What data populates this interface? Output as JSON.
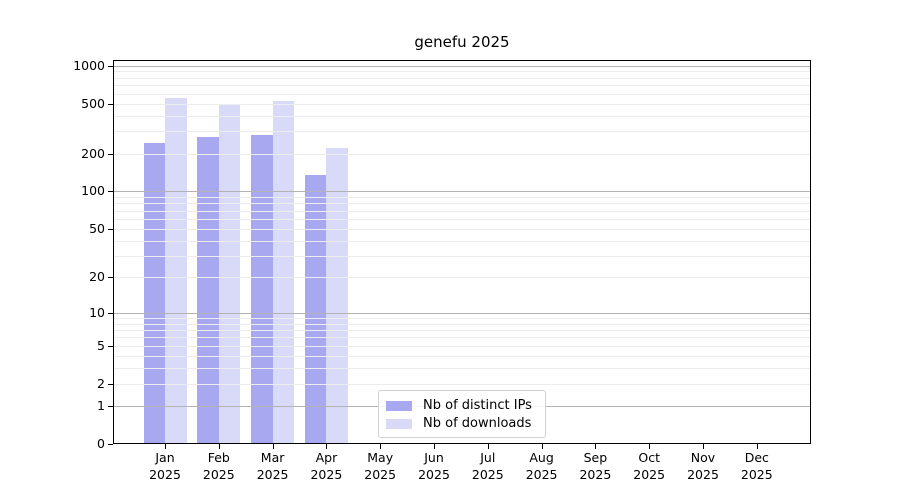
{
  "chart_data": {
    "type": "bar",
    "title": "genefu 2025",
    "categories": [
      "Jan",
      "Feb",
      "Mar",
      "Apr",
      "May",
      "Jun",
      "Jul",
      "Aug",
      "Sep",
      "Oct",
      "Nov",
      "Dec"
    ],
    "year_suffix": "2025",
    "series": [
      {
        "name": "Nb of distinct IPs",
        "color": "#a8a8f0",
        "values": [
          245,
          271,
          282,
          134,
          0,
          0,
          0,
          0,
          0,
          0,
          0,
          0
        ]
      },
      {
        "name": "Nb of downloads",
        "color": "#d9d9f8",
        "values": [
          550,
          495,
          527,
          221,
          0,
          0,
          0,
          0,
          0,
          0,
          0,
          0
        ]
      }
    ],
    "y_ticks": [
      0,
      1,
      2,
      5,
      10,
      20,
      50,
      100,
      200,
      500,
      1000
    ],
    "y_scale": "log10(value+1)",
    "ylim": [
      0,
      1100
    ],
    "xlabel": "",
    "ylabel": "",
    "grid": "both",
    "grid_above_bars": true,
    "legend_position": "bottom-center"
  }
}
